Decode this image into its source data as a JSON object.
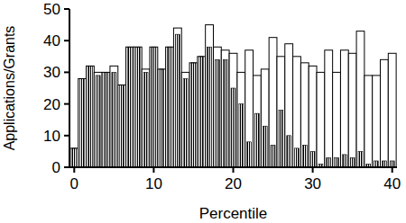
{
  "chart_data": {
    "type": "bar",
    "x_label": "Percentile",
    "y_label": "Applications/Grants",
    "x": [
      0,
      1,
      2,
      3,
      4,
      5,
      6,
      7,
      8,
      9,
      10,
      11,
      12,
      13,
      14,
      15,
      16,
      17,
      18,
      19,
      20,
      21,
      22,
      23,
      24,
      25,
      26,
      27,
      28,
      29,
      30,
      31,
      32,
      33,
      34,
      35,
      36,
      37,
      38,
      39,
      40
    ],
    "series": [
      {
        "color": "#ffffff",
        "values": [
          6,
          28,
          32,
          30,
          30,
          32,
          26,
          38,
          38,
          31,
          38,
          31,
          38,
          44,
          30,
          33,
          35,
          45,
          38,
          37,
          36,
          30,
          37,
          29,
          31,
          41,
          35,
          39,
          35,
          33,
          32,
          30,
          37,
          30,
          37,
          36,
          43,
          29,
          29,
          34,
          36
        ]
      },
      {
        "color": "#000000",
        "values": [
          6,
          28,
          32,
          29,
          30,
          30,
          26,
          38,
          38,
          30,
          38,
          31,
          38,
          42,
          28,
          33,
          35,
          38,
          34,
          34,
          25,
          20,
          8,
          17,
          13,
          7,
          18,
          10,
          6,
          7,
          5,
          1,
          3,
          3,
          4,
          3,
          5,
          1,
          2,
          2,
          2
        ]
      }
    ],
    "xlim": [
      -0.6,
      40.6
    ],
    "xticks": [
      0,
      10,
      20,
      30,
      40
    ],
    "ylim": [
      0,
      50
    ],
    "yticks": [
      0,
      10,
      20,
      30,
      40,
      50
    ]
  }
}
